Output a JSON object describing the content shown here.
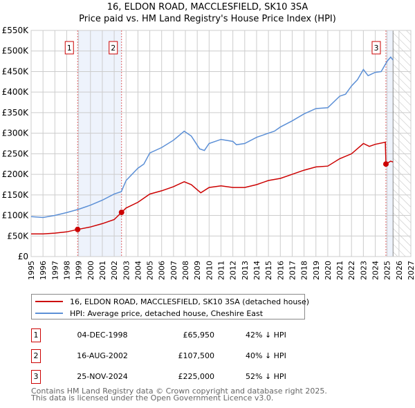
{
  "title": "16, ELDON ROAD, MACCLESFIELD, SK10 3SA",
  "subtitle": "Price paid vs. HM Land Registry's House Price Index (HPI)",
  "chart_data": {
    "type": "line",
    "xlim": [
      1995,
      2027
    ],
    "ylim": [
      0,
      550000
    ],
    "yticks": [
      {
        "v": 0,
        "label": "£0"
      },
      {
        "v": 50000,
        "label": "£50K"
      },
      {
        "v": 100000,
        "label": "£100K"
      },
      {
        "v": 150000,
        "label": "£150K"
      },
      {
        "v": 200000,
        "label": "£200K"
      },
      {
        "v": 250000,
        "label": "£250K"
      },
      {
        "v": 300000,
        "label": "£300K"
      },
      {
        "v": 350000,
        "label": "£350K"
      },
      {
        "v": 400000,
        "label": "£400K"
      },
      {
        "v": 450000,
        "label": "£450K"
      },
      {
        "v": 500000,
        "label": "£500K"
      },
      {
        "v": 550000,
        "label": "£550K"
      }
    ],
    "xticks": [
      "1995",
      "1996",
      "1997",
      "1998",
      "1999",
      "2000",
      "2001",
      "2002",
      "2003",
      "2004",
      "2005",
      "2006",
      "2007",
      "2008",
      "2009",
      "2010",
      "2011",
      "2012",
      "2013",
      "2014",
      "2015",
      "2016",
      "2017",
      "2018",
      "2019",
      "2020",
      "2021",
      "2022",
      "2023",
      "2024",
      "2025",
      "2026",
      "2027"
    ],
    "forecast_start": 2025.5,
    "series": [
      {
        "name": "16, ELDON ROAD, MACCLESFIELD, SK10 3SA (detached house)",
        "color": "#cc0000",
        "x": [
          1995,
          1996,
          1997,
          1998,
          1998.92,
          2000,
          2001,
          2002,
          2002.62,
          2003,
          2004,
          2005,
          2006,
          2007,
          2007.9,
          2008.5,
          2009.3,
          2010,
          2011,
          2012,
          2013,
          2014,
          2015,
          2016,
          2017,
          2018,
          2019,
          2020,
          2021,
          2022,
          2023,
          2023.5,
          2024,
          2024.85,
          2024.9,
          2025.3,
          2025.5
        ],
        "y": [
          55000,
          55000,
          57000,
          60000,
          65950,
          72000,
          80000,
          90000,
          107500,
          118000,
          132000,
          152000,
          160000,
          170000,
          182000,
          175000,
          155000,
          168000,
          172000,
          168000,
          168000,
          175000,
          185000,
          190000,
          200000,
          210000,
          218000,
          220000,
          238000,
          250000,
          275000,
          268000,
          273000,
          278000,
          225000,
          232000,
          230000
        ]
      },
      {
        "name": "HPI: Average price, detached house, Cheshire East",
        "color": "#5b8fd6",
        "x": [
          1995,
          1996,
          1997,
          1998,
          1999,
          2000,
          2001,
          2002,
          2002.6,
          2003,
          2004,
          2004.5,
          2005,
          2006,
          2007,
          2007.9,
          2008.5,
          2009.2,
          2009.6,
          2010,
          2011,
          2012,
          2012.3,
          2013,
          2014,
          2015,
          2015.5,
          2016,
          2017,
          2018,
          2019,
          2020,
          2021,
          2021.5,
          2022,
          2022.5,
          2023,
          2023.4,
          2024,
          2024.5,
          2025,
          2025.3,
          2025.5
        ],
        "y": [
          97000,
          95000,
          100000,
          107000,
          115000,
          125000,
          137000,
          152000,
          158000,
          185000,
          215000,
          225000,
          252000,
          265000,
          283000,
          305000,
          293000,
          262000,
          258000,
          275000,
          285000,
          280000,
          272000,
          275000,
          290000,
          300000,
          305000,
          315000,
          330000,
          347000,
          360000,
          362000,
          390000,
          395000,
          415000,
          430000,
          455000,
          440000,
          448000,
          450000,
          475000,
          485000,
          478000
        ]
      }
    ],
    "sales": [
      {
        "n": "1",
        "x": 1998.92,
        "price": 65950,
        "date": "04-DEC-1998",
        "price_label": "£65,950",
        "hpi": "42% ↓ HPI"
      },
      {
        "n": "2",
        "x": 2002.62,
        "price": 107500,
        "date": "16-AUG-2002",
        "price_label": "£107,500",
        "hpi": "40% ↓ HPI"
      },
      {
        "n": "3",
        "x": 2024.9,
        "price": 225000,
        "date": "25-NOV-2024",
        "price_label": "£225,000",
        "hpi": "52% ↓ HPI"
      }
    ]
  },
  "footer": {
    "line1": "Contains HM Land Registry data © Crown copyright and database right 2025.",
    "line2": "This data is licensed under the Open Government Licence v3.0."
  }
}
